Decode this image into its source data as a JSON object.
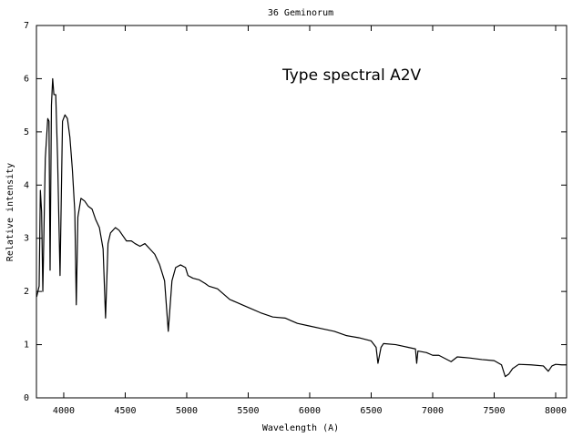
{
  "chart_data": {
    "type": "line",
    "title": "36 Geminorum",
    "x_label": "Wavelength (A)",
    "y_label": "Relative intensity",
    "annotation": {
      "text": "Type spectral A2V",
      "color": "#e00000"
    },
    "xlim": [
      3778,
      8089
    ],
    "ylim": [
      0,
      7
    ],
    "xticks": [
      4000,
      4500,
      5000,
      5500,
      6000,
      6500,
      7000,
      7500,
      8000
    ],
    "yticks": [
      0,
      1,
      2,
      3,
      4,
      5,
      6,
      7
    ],
    "grid": false,
    "series": [
      {
        "name": "36 Geminorum",
        "color": "#000000",
        "x": [
          3780,
          3800,
          3810,
          3820,
          3830,
          3850,
          3870,
          3880,
          3889,
          3900,
          3910,
          3920,
          3935,
          3950,
          3970,
          3990,
          4010,
          4030,
          4050,
          4070,
          4090,
          4102,
          4115,
          4140,
          4170,
          4200,
          4230,
          4260,
          4290,
          4320,
          4340,
          4360,
          4380,
          4420,
          4450,
          4480,
          4510,
          4550,
          4580,
          4620,
          4660,
          4700,
          4740,
          4780,
          4820,
          4850,
          4880,
          4910,
          4950,
          4990,
          5010,
          5050,
          5100,
          5150,
          5180,
          5250,
          5300,
          5350,
          5400,
          5500,
          5600,
          5700,
          5800,
          5850,
          5900,
          6000,
          6100,
          6200,
          6300,
          6400,
          6500,
          6540,
          6555,
          6580,
          6600,
          6700,
          6800,
          6860,
          6870,
          6880,
          6950,
          7000,
          7050,
          7150,
          7200,
          7300,
          7400,
          7500,
          7560,
          7590,
          7620,
          7650,
          7700,
          7800,
          7900,
          7940,
          7970,
          8000,
          8050,
          8089
        ],
        "values": [
          1.9,
          2.1,
          3.9,
          3.5,
          2.0,
          4.5,
          5.25,
          5.2,
          2.4,
          5.5,
          6.0,
          5.7,
          5.7,
          4.5,
          2.3,
          5.2,
          5.32,
          5.25,
          4.9,
          4.3,
          3.5,
          1.75,
          3.4,
          3.75,
          3.7,
          3.6,
          3.55,
          3.35,
          3.2,
          2.8,
          1.5,
          2.9,
          3.1,
          3.2,
          3.15,
          3.05,
          2.95,
          2.95,
          2.9,
          2.85,
          2.9,
          2.8,
          2.7,
          2.5,
          2.2,
          1.25,
          2.2,
          2.45,
          2.5,
          2.45,
          2.3,
          2.25,
          2.22,
          2.15,
          2.1,
          2.05,
          1.95,
          1.85,
          1.8,
          1.7,
          1.6,
          1.52,
          1.5,
          1.45,
          1.4,
          1.35,
          1.3,
          1.25,
          1.17,
          1.13,
          1.07,
          0.95,
          0.65,
          0.95,
          1.02,
          1.0,
          0.95,
          0.92,
          0.65,
          0.88,
          0.85,
          0.8,
          0.8,
          0.68,
          0.77,
          0.75,
          0.72,
          0.7,
          0.62,
          0.4,
          0.45,
          0.55,
          0.63,
          0.62,
          0.6,
          0.5,
          0.6,
          0.63,
          0.62,
          0.62
        ]
      }
    ]
  }
}
